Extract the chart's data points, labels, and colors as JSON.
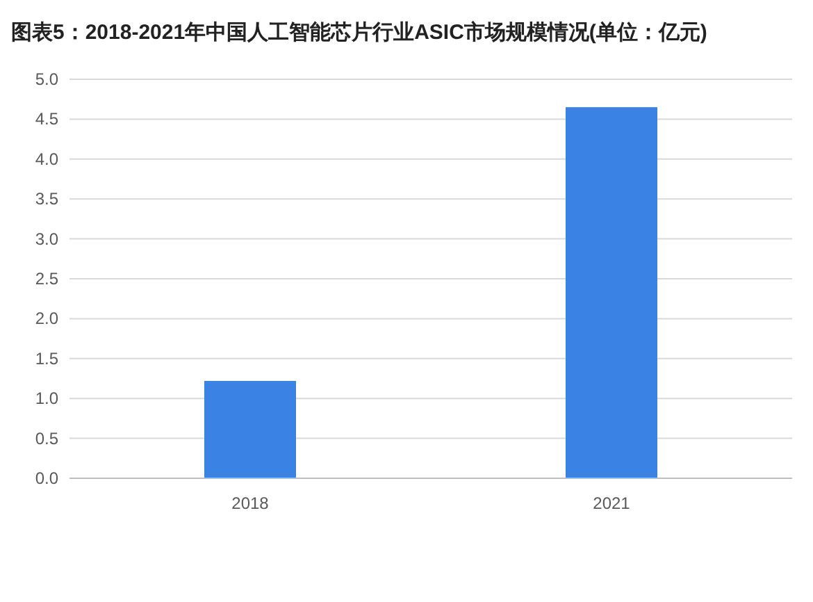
{
  "chart_data": {
    "type": "bar",
    "title": "图表5：2018-2021年中国人工智能芯片行业ASIC市场规模情况(单位：亿元)",
    "categories": [
      "2018",
      "2021"
    ],
    "series": [
      {
        "color": "#3a83e4",
        "values": [
          1.22,
          4.65
        ]
      }
    ],
    "ylim": [
      0,
      5
    ],
    "yticks": [
      {
        "value": 0,
        "label": "0.0"
      },
      {
        "value": 0.5,
        "label": "0.5"
      },
      {
        "value": 1,
        "label": "1.0"
      },
      {
        "value": 1.5,
        "label": "1.5"
      },
      {
        "value": 2,
        "label": "2.0"
      },
      {
        "value": 2.5,
        "label": "2.5"
      },
      {
        "value": 3,
        "label": "3.0"
      },
      {
        "value": 3.5,
        "label": "3.5"
      },
      {
        "value": 4,
        "label": "4.0"
      },
      {
        "value": 4.5,
        "label": "4.5"
      },
      {
        "value": 5,
        "label": "5.0"
      }
    ],
    "grid": "y"
  }
}
